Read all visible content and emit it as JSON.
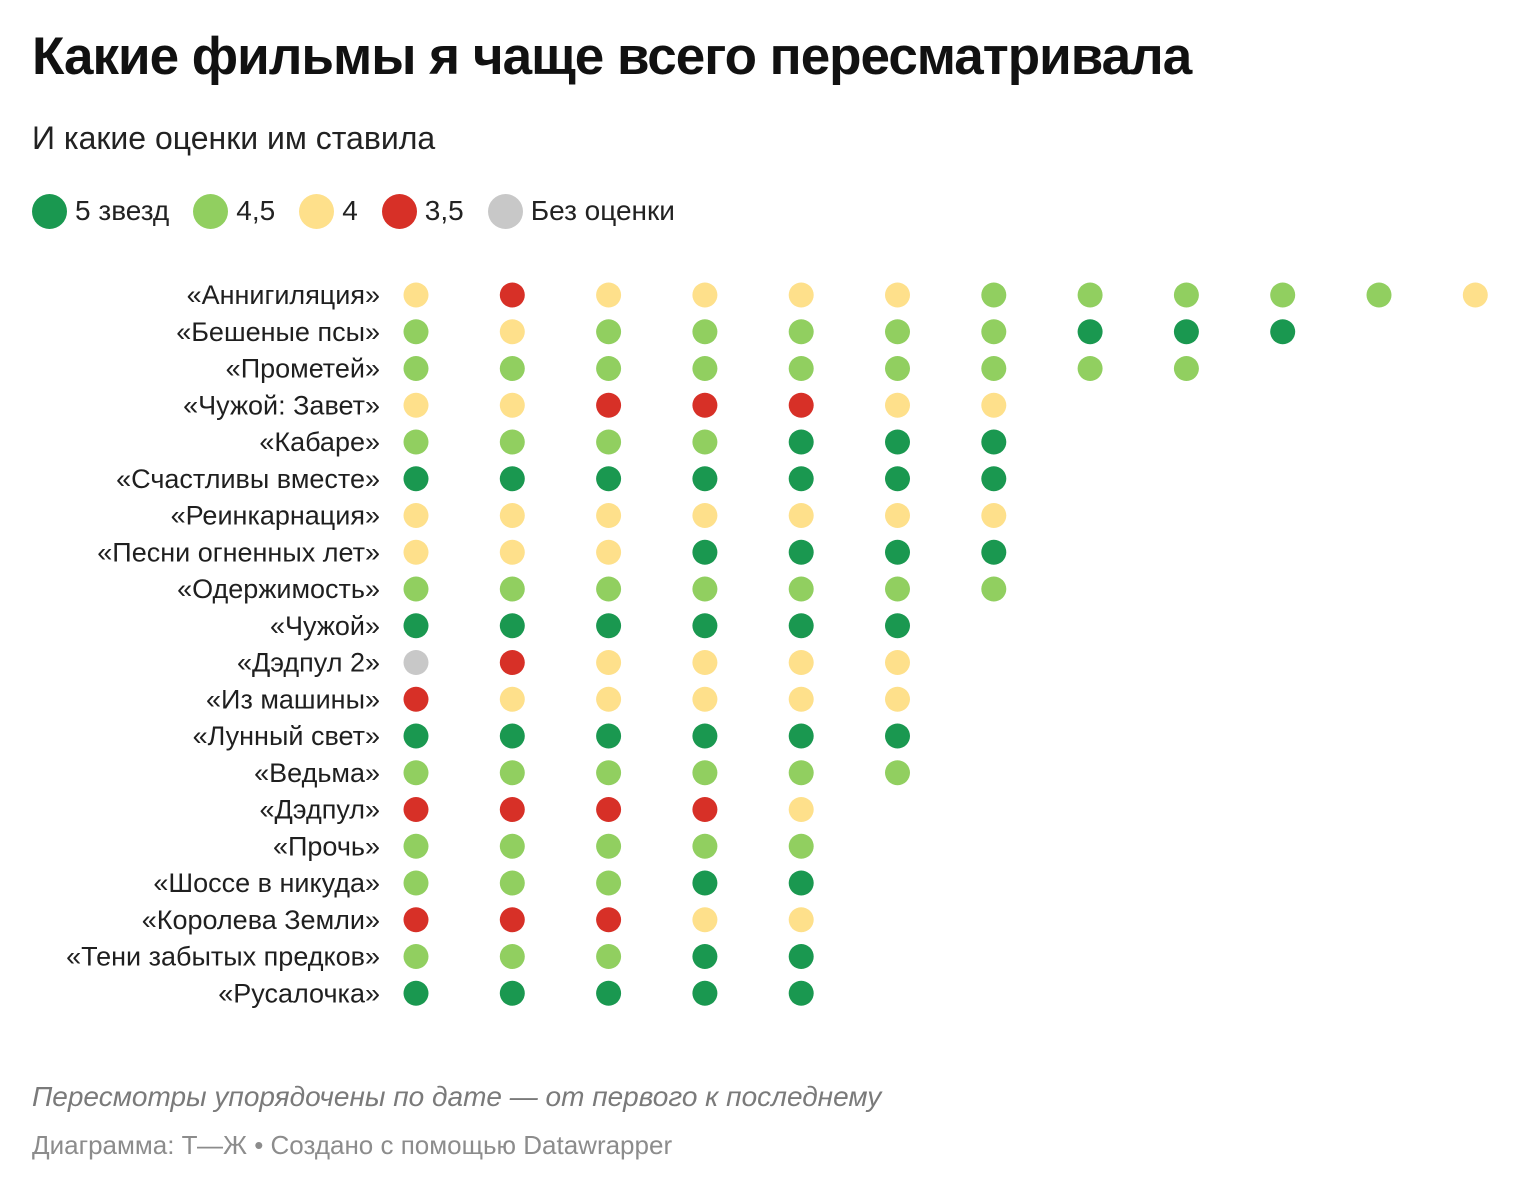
{
  "title": "Какие фильмы я чаще всего пересматривала",
  "subtitle": "И какие оценки им ставила",
  "legend": [
    {
      "key": "5",
      "label": "5 звезд",
      "color": "#1a9850"
    },
    {
      "key": "4.5",
      "label": "4,5",
      "color": "#91cf60"
    },
    {
      "key": "4",
      "label": "4",
      "color": "#fee08b"
    },
    {
      "key": "3.5",
      "label": "3,5",
      "color": "#d73027"
    },
    {
      "key": "none",
      "label": "Без оценки",
      "color": "#c8c8c8"
    }
  ],
  "footnote": "Пересмотры упорядочены по дате — от первого к последнему",
  "credits": "Диаграмма: Т—Ж • Создано с помощью Datawrapper",
  "chart_data": {
    "type": "dot-matrix",
    "x_meaning": "rewatch order (first to last)",
    "rows": [
      {
        "label": "«Аннигиляция»",
        "ratings": [
          "4",
          "3.5",
          "4",
          "4",
          "4",
          "4",
          "4.5",
          "4.5",
          "4.5",
          "4.5",
          "4.5",
          "4"
        ]
      },
      {
        "label": "«Бешеные псы»",
        "ratings": [
          "4.5",
          "4",
          "4.5",
          "4.5",
          "4.5",
          "4.5",
          "4.5",
          "5",
          "5",
          "5"
        ]
      },
      {
        "label": "«Прометей»",
        "ratings": [
          "4.5",
          "4.5",
          "4.5",
          "4.5",
          "4.5",
          "4.5",
          "4.5",
          "4.5",
          "4.5"
        ]
      },
      {
        "label": "«Чужой: Завет»",
        "ratings": [
          "4",
          "4",
          "3.5",
          "3.5",
          "3.5",
          "4",
          "4"
        ]
      },
      {
        "label": "«Кабаре»",
        "ratings": [
          "4.5",
          "4.5",
          "4.5",
          "4.5",
          "5",
          "5",
          "5"
        ]
      },
      {
        "label": "«Счастливы вместе»",
        "ratings": [
          "5",
          "5",
          "5",
          "5",
          "5",
          "5",
          "5"
        ]
      },
      {
        "label": "«Реинкарнация»",
        "ratings": [
          "4",
          "4",
          "4",
          "4",
          "4",
          "4",
          "4"
        ]
      },
      {
        "label": "«Песни огненных лет»",
        "ratings": [
          "4",
          "4",
          "4",
          "5",
          "5",
          "5",
          "5"
        ]
      },
      {
        "label": "«Одержимость»",
        "ratings": [
          "4.5",
          "4.5",
          "4.5",
          "4.5",
          "4.5",
          "4.5",
          "4.5"
        ]
      },
      {
        "label": "«Чужой»",
        "ratings": [
          "5",
          "5",
          "5",
          "5",
          "5",
          "5"
        ]
      },
      {
        "label": "«Дэдпул 2»",
        "ratings": [
          "none",
          "3.5",
          "4",
          "4",
          "4",
          "4"
        ]
      },
      {
        "label": "«Из машины»",
        "ratings": [
          "3.5",
          "4",
          "4",
          "4",
          "4",
          "4"
        ]
      },
      {
        "label": "«Лунный свет»",
        "ratings": [
          "5",
          "5",
          "5",
          "5",
          "5",
          "5"
        ]
      },
      {
        "label": "«Ведьма»",
        "ratings": [
          "4.5",
          "4.5",
          "4.5",
          "4.5",
          "4.5",
          "4.5"
        ]
      },
      {
        "label": "«Дэдпул»",
        "ratings": [
          "3.5",
          "3.5",
          "3.5",
          "3.5",
          "4"
        ]
      },
      {
        "label": "«Прочь»",
        "ratings": [
          "4.5",
          "4.5",
          "4.5",
          "4.5",
          "4.5"
        ]
      },
      {
        "label": "«Шоссе в никуда»",
        "ratings": [
          "4.5",
          "4.5",
          "4.5",
          "5",
          "5"
        ]
      },
      {
        "label": "«Королева Земли»",
        "ratings": [
          "3.5",
          "3.5",
          "3.5",
          "4",
          "4"
        ]
      },
      {
        "label": "«Тени забытых предков»",
        "ratings": [
          "4.5",
          "4.5",
          "4.5",
          "5",
          "5"
        ]
      },
      {
        "label": "«Русалочка»",
        "ratings": [
          "5",
          "5",
          "5",
          "5",
          "5"
        ]
      }
    ]
  }
}
